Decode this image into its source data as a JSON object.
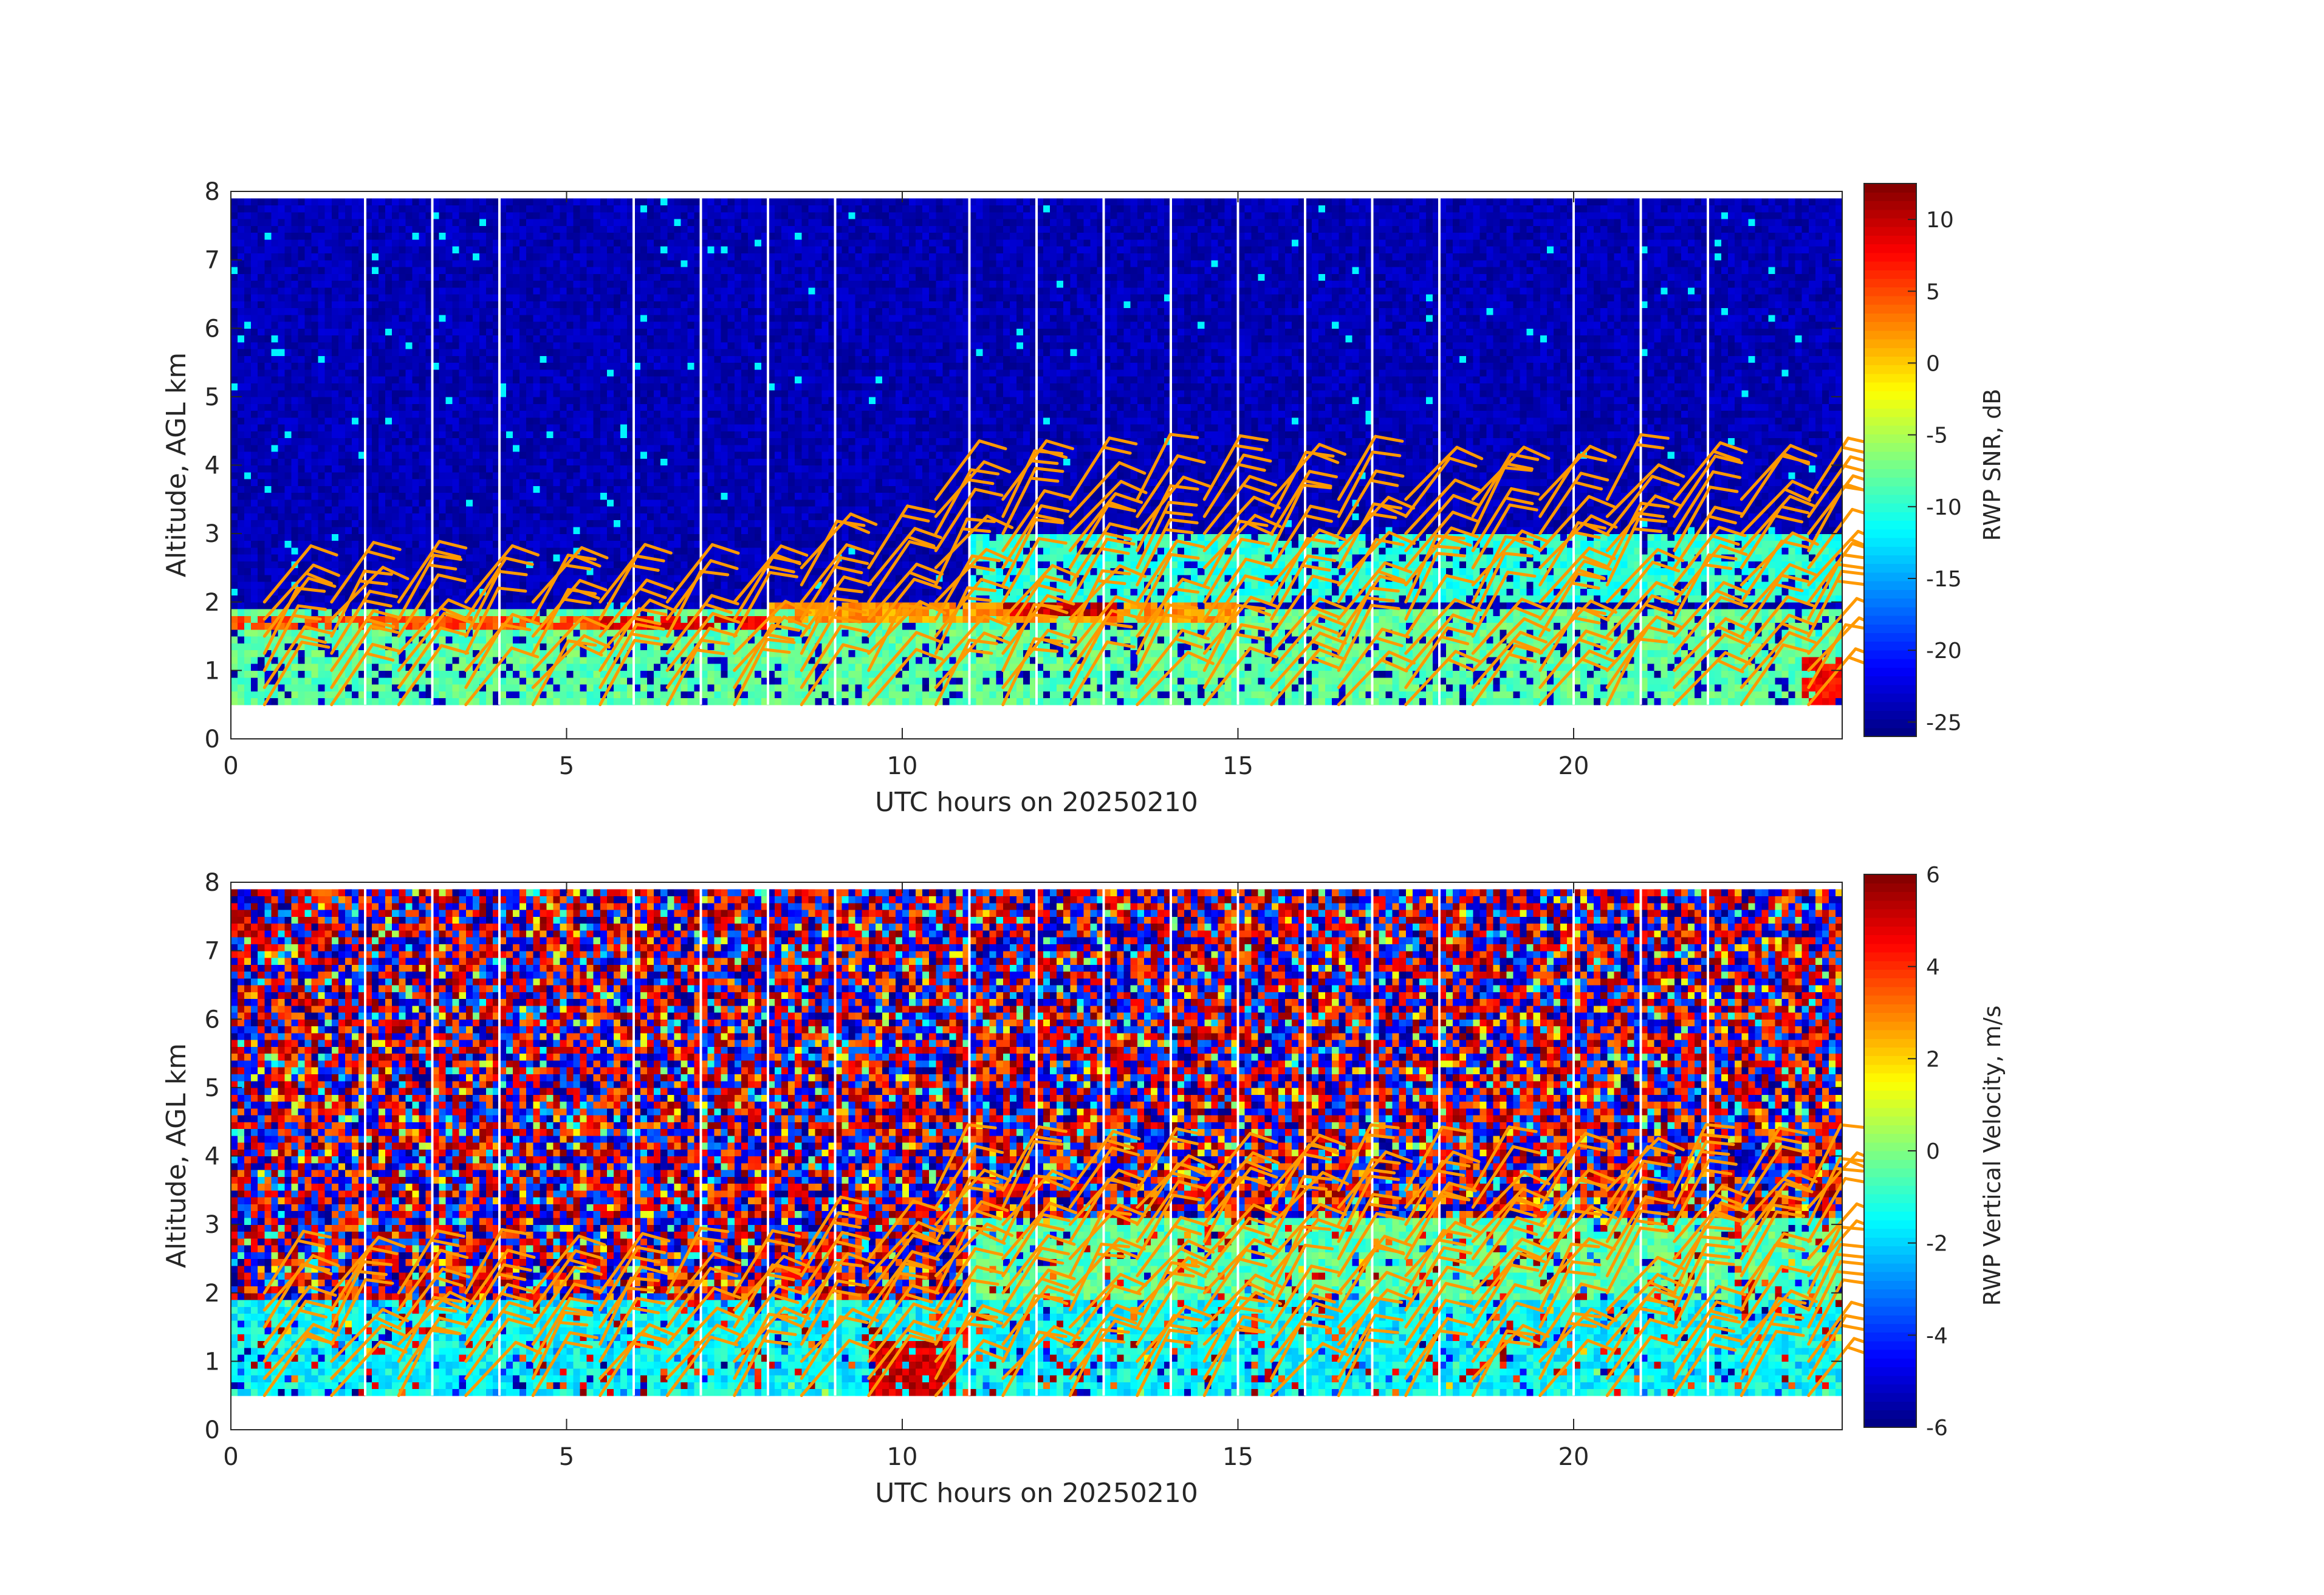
{
  "chart_data": [
    {
      "type": "heatmap",
      "title": "",
      "xlabel": "UTC hours on 20250210",
      "ylabel": "Altitude, AGL km",
      "colorbar_label": "RWP SNR, dB",
      "xlim": [
        0,
        24
      ],
      "ylim": [
        0,
        8
      ],
      "x_ticks": [
        0,
        5,
        10,
        15,
        20
      ],
      "y_ticks": [
        0,
        1,
        2,
        3,
        4,
        5,
        6,
        7,
        8
      ],
      "clim": [
        -26,
        12.5
      ],
      "c_ticks": [
        10,
        5,
        0,
        -5,
        -10,
        -15,
        -20,
        -25
      ],
      "colormap": "jet",
      "data_altitude_range_km": [
        0.5,
        7.9
      ],
      "background_value": -24,
      "features": [
        {
          "name": "boundary layer echo",
          "x": [
            0,
            24
          ],
          "y": [
            0.5,
            1.9
          ],
          "value": -8
        },
        {
          "name": "elevated layer",
          "x": [
            8,
            15
          ],
          "y": [
            1.7,
            2.05
          ],
          "value": 2
        },
        {
          "name": "strong layer near 12.5h",
          "x": [
            11.5,
            13.2
          ],
          "y": [
            1.85,
            2.05
          ],
          "value": 10
        },
        {
          "name": "upper cloud layer",
          "x": [
            11,
            24
          ],
          "y": [
            2.0,
            3.0
          ],
          "value": -10
        },
        {
          "name": "layer 0-5h",
          "x": [
            0,
            5.5
          ],
          "y": [
            1.6,
            1.85
          ],
          "value": 5
        },
        {
          "name": "layer 6-8h",
          "x": [
            5.5,
            8
          ],
          "y": [
            1.6,
            1.85
          ],
          "value": 9
        },
        {
          "name": "surface enhancement 23.5h",
          "x": [
            23.4,
            24
          ],
          "y": [
            0.5,
            1.2
          ],
          "value": 8
        }
      ],
      "data_gaps_hours": [
        2,
        3,
        4,
        6,
        7,
        8,
        9,
        11,
        12,
        13,
        14,
        15,
        16,
        17,
        18,
        20,
        21,
        22
      ],
      "wind_barbs": {
        "color": "#FF9900",
        "x_spacing_hours": 1,
        "altitudes_km": [
          0.5,
          0.75,
          1.0,
          1.25,
          1.5,
          1.75,
          2.0,
          2.25,
          2.5,
          2.75,
          3.0,
          3.25,
          3.5
        ],
        "style": "barb"
      }
    },
    {
      "type": "heatmap",
      "title": "",
      "xlabel": "UTC hours on 20250210",
      "ylabel": "Altitude, AGL km",
      "colorbar_label": "RWP Vertical Velocity, m/s",
      "xlim": [
        0,
        24
      ],
      "ylim": [
        0,
        8
      ],
      "x_ticks": [
        0,
        5,
        10,
        15,
        20
      ],
      "y_ticks": [
        0,
        1,
        2,
        3,
        4,
        5,
        6,
        7,
        8
      ],
      "clim": [
        -6,
        6
      ],
      "c_ticks": [
        6,
        4,
        2,
        0,
        -2,
        -4,
        -6
      ],
      "colormap": "jet",
      "data_altitude_range_km": [
        0.5,
        7.9
      ],
      "background": "noise",
      "features": [
        {
          "name": "boundary layer",
          "x": [
            0,
            24
          ],
          "y": [
            0.5,
            1.9
          ],
          "value": -1.5
        },
        {
          "name": "upper cloud layer",
          "x": [
            11,
            24
          ],
          "y": [
            1.9,
            3.1
          ],
          "value": -0.5
        },
        {
          "name": "updraft near 10h",
          "x": [
            9.5,
            10.8
          ],
          "y": [
            0.5,
            1.3
          ],
          "value": 5
        }
      ],
      "data_gaps_hours": [
        2,
        3,
        4,
        6,
        7,
        8,
        9,
        11,
        12,
        13,
        14,
        15,
        16,
        17,
        18,
        20,
        21,
        22
      ],
      "wind_barbs": {
        "color": "#FF9900",
        "x_spacing_hours": 1,
        "altitudes_km": [
          0.5,
          0.75,
          1.0,
          1.25,
          1.5,
          1.75,
          2.0,
          2.25,
          2.5,
          2.75,
          3.0,
          3.25,
          3.5
        ],
        "style": "barb"
      }
    }
  ]
}
